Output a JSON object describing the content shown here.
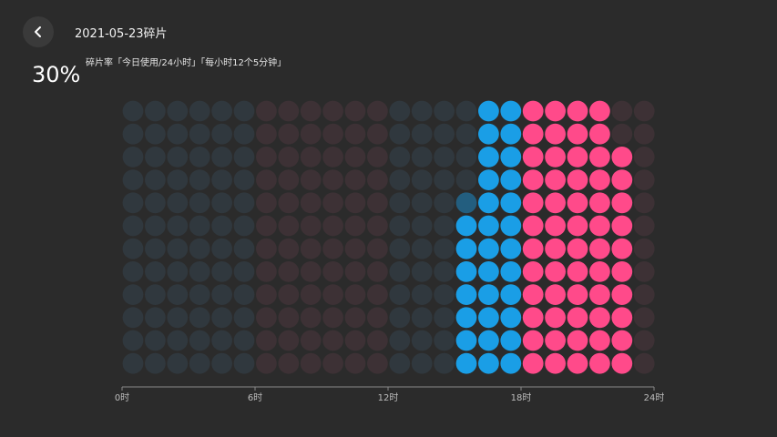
{
  "header": {
    "back_icon": "chevron-left-icon",
    "date_title": "2021-05-23碎片",
    "rate_value": "30%",
    "rate_description": "碎片率「今日使用/24小时」「每小时12个5分钟」"
  },
  "colors": {
    "background": "#2b2b2b",
    "used_blue": "#1a9ee6",
    "used_pink": "#ff4a8a",
    "empty_slate": "#30383e",
    "empty_maroon": "#3d3135",
    "axis": "#8a8a8a"
  },
  "chart_data": {
    "type": "heatmap",
    "x_ticks": [
      "0时",
      "6时",
      "12时",
      "18时",
      "24时"
    ],
    "hours": 24,
    "slots_per_hour": 12,
    "columns": [
      {
        "hour": 0,
        "used": 0,
        "color": "empty"
      },
      {
        "hour": 1,
        "used": 0,
        "color": "empty"
      },
      {
        "hour": 2,
        "used": 0,
        "color": "empty"
      },
      {
        "hour": 3,
        "used": 0,
        "color": "empty"
      },
      {
        "hour": 4,
        "used": 0,
        "color": "empty"
      },
      {
        "hour": 5,
        "used": 0,
        "color": "empty"
      },
      {
        "hour": 6,
        "used": 0,
        "color": "empty"
      },
      {
        "hour": 7,
        "used": 0,
        "color": "empty"
      },
      {
        "hour": 8,
        "used": 0,
        "color": "empty"
      },
      {
        "hour": 9,
        "used": 0,
        "color": "empty"
      },
      {
        "hour": 10,
        "used": 0,
        "color": "empty"
      },
      {
        "hour": 11,
        "used": 0,
        "color": "empty"
      },
      {
        "hour": 12,
        "used": 0,
        "color": "empty"
      },
      {
        "hour": 13,
        "used": 0,
        "color": "empty"
      },
      {
        "hour": 14,
        "used": 0,
        "color": "empty"
      },
      {
        "hour": 15,
        "used": 7.5,
        "color": "blue"
      },
      {
        "hour": 16,
        "used": 12,
        "color": "blue"
      },
      {
        "hour": 17,
        "used": 12,
        "color": "blue"
      },
      {
        "hour": 18,
        "used": 12,
        "color": "pink"
      },
      {
        "hour": 19,
        "used": 12,
        "color": "pink"
      },
      {
        "hour": 20,
        "used": 12,
        "color": "pink"
      },
      {
        "hour": 21,
        "used": 12,
        "color": "pink"
      },
      {
        "hour": 22,
        "used": 10,
        "color": "pink"
      },
      {
        "hour": 23,
        "used": 0,
        "color": "empty"
      }
    ]
  }
}
